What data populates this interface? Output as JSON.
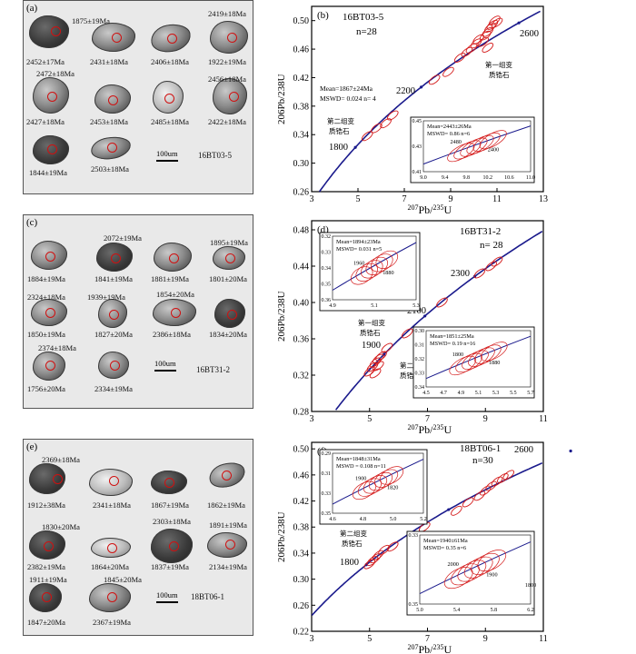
{
  "panels": {
    "a": {
      "label": "(a)",
      "sample": "16BT03-5",
      "scale": "100um",
      "ages": [
        "1875±19Ma",
        "2452±17Ma",
        "2431±18Ma",
        "2406±18Ma",
        "2419±18Ma",
        "1922±19Ma",
        "2472±18Ma",
        "2456±18Ma",
        "2427±18Ma",
        "2453±18Ma",
        "2485±18Ma",
        "2422±18Ma",
        "1844±19Ma",
        "2503±18Ma"
      ]
    },
    "c": {
      "label": "(c)",
      "sample": "16BT31-2",
      "scale": "100um",
      "ages": [
        "2072±19Ma",
        "1895±19Ma",
        "1884±19Ma",
        "1841±19Ma",
        "1881±19Ma",
        "1801±20Ma",
        "2324±18Ma",
        "1939±19Ma",
        "1854±20Ma",
        "1850±19Ma",
        "1827±20Ma",
        "2386±18Ma",
        "1834±20Ma",
        "2374±18Ma",
        "1756±20Ma",
        "2334±19Ma"
      ]
    },
    "e": {
      "label": "(e)",
      "sample": "18BT06-1",
      "scale": "100um",
      "ages": [
        "2369±18Ma",
        "1912±38Ma",
        "2341±18Ma",
        "1867±19Ma",
        "1862±19Ma",
        "1830±20Ma",
        "2303±18Ma",
        "1891±19Ma",
        "2382±19Ma",
        "1864±20Ma",
        "1837±19Ma",
        "2134±19Ma",
        "1911±19Ma",
        "1845±20Ma",
        "1847±20Ma",
        "2367±19Ma"
      ]
    }
  },
  "chart_data": [
    {
      "type": "scatter",
      "panel": "(b)",
      "title": "16BT03-5",
      "n_label": "n=28",
      "xlabel_sup": "207",
      "xlabel": "Pb/",
      "xlabel_sup2": "235",
      "xlabel_end": "U",
      "ylabel": "206Pb/238U",
      "xlim": [
        3,
        13
      ],
      "ylim": [
        0.26,
        0.52
      ],
      "xticks": [
        3,
        5,
        7,
        9,
        11,
        13
      ],
      "yticks": [
        0.26,
        0.3,
        0.34,
        0.38,
        0.42,
        0.46,
        0.5
      ],
      "concordia_labels": [
        "1800",
        "2200",
        "2600"
      ],
      "annotations": [
        "Mean=1867±24Ma",
        "MSWD= 0.024 n= 4",
        "第二组变",
        "质锆石",
        "第一组变",
        "质锆石"
      ],
      "ellipses": [
        [
          5.4,
          0.338
        ],
        [
          5.8,
          0.349
        ],
        [
          6.2,
          0.356
        ],
        [
          6.5,
          0.367
        ],
        [
          8.3,
          0.417
        ],
        [
          8.9,
          0.428
        ],
        [
          9.4,
          0.448
        ],
        [
          9.7,
          0.456
        ],
        [
          9.9,
          0.461
        ],
        [
          10.1,
          0.468
        ],
        [
          10.2,
          0.474
        ],
        [
          10.4,
          0.47
        ],
        [
          10.5,
          0.479
        ],
        [
          10.6,
          0.484
        ],
        [
          10.7,
          0.49
        ],
        [
          10.8,
          0.494
        ],
        [
          10.9,
          0.5
        ],
        [
          11.0,
          0.497
        ],
        [
          10.6,
          0.462
        ]
      ],
      "inset": {
        "xlim": [
          9.0,
          11.0
        ],
        "ylim": [
          0.41,
          0.47
        ],
        "xticks": [
          "9.0",
          "9.4",
          "9.8",
          "10.2",
          "10.6",
          "11.0"
        ],
        "yticks": [
          "0.41",
          "0.43",
          "0.45"
        ],
        "labels": [
          "2480",
          "2400"
        ],
        "mean": "Mean=2443±26Ma",
        "mswd": "MSWD= 0.86",
        "n": "n=6"
      }
    },
    {
      "type": "scatter",
      "panel": "(d)",
      "title": "16BT31-2",
      "n_label": "n= 28",
      "xlabel_sup": "207",
      "xlabel": "Pb/",
      "xlabel_sup2": "235",
      "xlabel_end": "U",
      "ylabel": "206Pb/238U",
      "xlim": [
        3,
        11
      ],
      "ylim": [
        0.28,
        0.49
      ],
      "xticks": [
        3,
        5,
        7,
        9,
        11
      ],
      "yticks": [
        0.28,
        0.32,
        0.36,
        0.4,
        0.44,
        0.48
      ],
      "concordia_labels": [
        "1900",
        "2100",
        "2300"
      ],
      "annotations": [
        "第一组变",
        "质锆石",
        "第二组变",
        "质锆石"
      ],
      "ellipses": [
        [
          5.0,
          0.324
        ],
        [
          5.1,
          0.329
        ],
        [
          5.2,
          0.334
        ],
        [
          5.3,
          0.338
        ],
        [
          5.4,
          0.341
        ],
        [
          5.6,
          0.35
        ],
        [
          6.3,
          0.366
        ],
        [
          7.5,
          0.4
        ],
        [
          8.8,
          0.432
        ],
        [
          9.2,
          0.44
        ],
        [
          9.4,
          0.445
        ],
        [
          5.2,
          0.322
        ],
        [
          5.3,
          0.33
        ]
      ],
      "inset_top": {
        "xlim": [
          "4.9",
          "5.3"
        ],
        "yticks": [
          "0.36",
          "0.35",
          "0.34",
          "0.33",
          "0.32"
        ],
        "xticks": [
          "4.9",
          "5.1",
          "5.3"
        ],
        "labels": [
          "1960",
          "1880"
        ],
        "mean": "Mean=1894±23Ma",
        "mswd": "MSWD= 0.031",
        "n": "n=5"
      },
      "inset_bottom": {
        "xticks": [
          "4.5",
          "4.7",
          "4.9",
          "5.1",
          "5.3",
          "5.5",
          "5.7"
        ],
        "yticks": [
          "0.34",
          "0.33",
          "0.32",
          "0.31",
          "0.30"
        ],
        "labels": [
          "1800",
          "1880"
        ],
        "mean": "Mean=1851±25Ma",
        "mswd": "MSWD= 0.19",
        "n": "n=16"
      }
    },
    {
      "type": "scatter",
      "panel": "(f)",
      "title": "18BT06-1",
      "n_label": "n=30",
      "xlabel_sup": "207",
      "xlabel": "Pb/",
      "xlabel_sup2": "235",
      "xlabel_end": "U",
      "ylabel": "206Pb/238U",
      "xlim": [
        3,
        11
      ],
      "ylim": [
        0.22,
        0.51
      ],
      "xticks": [
        3,
        5,
        7,
        9,
        11
      ],
      "yticks": [
        0.22,
        0.26,
        0.3,
        0.34,
        0.38,
        0.42,
        0.46,
        0.5
      ],
      "concordia_labels": [
        "1800",
        "2200",
        "2600"
      ],
      "annotations": [
        "第二组变",
        "质锆石",
        "第一组变",
        "质锆石"
      ],
      "ellipses": [
        [
          5.0,
          0.323
        ],
        [
          5.1,
          0.328
        ],
        [
          5.2,
          0.332
        ],
        [
          5.3,
          0.337
        ],
        [
          5.5,
          0.345
        ],
        [
          5.8,
          0.35
        ],
        [
          6.9,
          0.38
        ],
        [
          8.0,
          0.405
        ],
        [
          8.4,
          0.418
        ],
        [
          8.8,
          0.428
        ],
        [
          9.0,
          0.436
        ],
        [
          9.2,
          0.443
        ],
        [
          9.4,
          0.45
        ],
        [
          9.6,
          0.455
        ],
        [
          9.8,
          0.46
        ]
      ],
      "inset_top": {
        "xticks": [
          "4.6",
          "4.8",
          "5.0",
          "5.2"
        ],
        "yticks": [
          "0.35",
          "0.33",
          "0.31",
          "0.29"
        ],
        "labels": [
          "1900",
          "1820"
        ],
        "mean": "Mean=1848±31Ma",
        "mswd": "MSWD = 0.108",
        "n": "n=11"
      },
      "inset_bottom": {
        "xticks": [
          "5.0",
          "5.4",
          "5.8",
          "6.2"
        ],
        "yticks": [
          "0.35",
          "0.33"
        ],
        "labels": [
          "2000",
          "1900",
          "1800"
        ],
        "mean": "Mean=1940±61Ma",
        "mswd": "MSWD= 0.35",
        "n": "n=6"
      }
    }
  ]
}
